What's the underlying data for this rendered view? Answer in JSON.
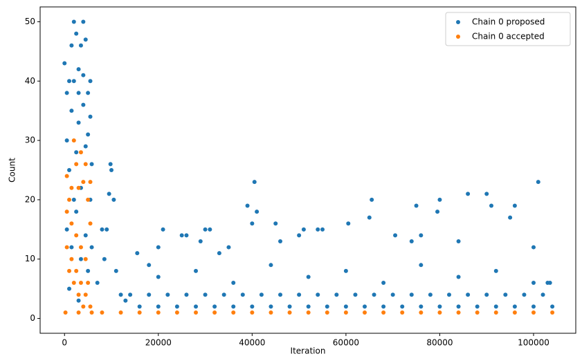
{
  "chart_data": {
    "type": "scatter",
    "xlabel": "Iteration",
    "ylabel": "Count",
    "xlim": [
      -5200,
      109000
    ],
    "ylim": [
      -2.5,
      52.5
    ],
    "xticks": [
      0,
      20000,
      40000,
      60000,
      80000,
      100000
    ],
    "yticks": [
      0,
      10,
      20,
      30,
      40,
      50
    ],
    "legend": "upper right",
    "series": [
      {
        "name": "Chain 0 proposed",
        "color": "#1f77b4",
        "x": [
          0,
          500,
          1000,
          1500,
          2000,
          2500,
          3000,
          3500,
          4000,
          4500,
          5000,
          5500,
          500,
          1000,
          1500,
          2000,
          2500,
          3000,
          3500,
          4000,
          4500,
          5000,
          5500,
          500,
          1500,
          2500,
          3500,
          4500,
          5500,
          1000,
          3000,
          5000,
          2000,
          4000,
          3000,
          5800,
          5800,
          9800,
          10000,
          9500,
          10500,
          9000,
          8000,
          8500,
          7000,
          11000,
          12000,
          13000,
          15500,
          18000,
          20000,
          21000,
          25000,
          26000,
          29000,
          30000,
          31000,
          33000,
          35000,
          39000,
          40500,
          41000,
          40000,
          45000,
          46000,
          50000,
          51000,
          54000,
          55000,
          60500,
          65500,
          65000,
          70500,
          75000,
          74000,
          76000,
          80000,
          79500,
          84000,
          86000,
          90000,
          91000,
          95000,
          96000,
          100000,
          101000,
          103000,
          103500,
          14000,
          18000,
          22000,
          26000,
          30000,
          34000,
          38000,
          42000,
          46000,
          50000,
          54000,
          58000,
          62000,
          66000,
          70000,
          74000,
          78000,
          82000,
          86000,
          90000,
          94000,
          98000,
          102000,
          16000,
          20000,
          24000,
          28000,
          32000,
          36000,
          40000,
          44000,
          48000,
          52000,
          56000,
          60000,
          64000,
          68000,
          72000,
          76000,
          80000,
          84000,
          88000,
          92000,
          96000,
          100000,
          104000,
          20000,
          28000,
          36000,
          44000,
          52000,
          60000,
          68000,
          76000,
          84000,
          92000,
          100000
        ],
        "y": [
          43,
          38,
          40,
          46,
          50,
          48,
          42,
          46,
          50,
          47,
          38,
          40,
          30,
          25,
          35,
          20,
          28,
          33,
          22,
          36,
          29,
          31,
          34,
          15,
          12,
          18,
          10,
          14,
          20,
          5,
          3,
          8,
          40,
          41,
          38,
          26,
          12,
          26,
          25,
          21,
          20,
          15,
          15,
          10,
          6,
          8,
          4,
          3,
          11,
          9,
          12,
          15,
          14,
          14,
          13,
          15,
          15,
          11,
          12,
          19,
          23,
          18,
          16,
          16,
          13,
          14,
          15,
          15,
          15,
          16,
          20,
          17,
          14,
          19,
          13,
          14,
          20,
          18,
          13,
          21,
          21,
          19,
          17,
          19,
          12,
          23,
          6,
          6,
          4,
          4,
          4,
          4,
          4,
          4,
          4,
          4,
          4,
          4,
          4,
          4,
          4,
          4,
          4,
          4,
          4,
          4,
          4,
          4,
          4,
          4,
          4,
          2,
          2,
          2,
          2,
          2,
          2,
          2,
          2,
          2,
          2,
          2,
          2,
          2,
          2,
          2,
          2,
          2,
          2,
          2,
          2,
          2,
          2,
          2,
          7,
          8,
          6,
          9,
          7,
          8,
          6,
          9,
          7,
          8,
          6
        ]
      },
      {
        "name": "Chain 0 accepted",
        "color": "#ff7f0e",
        "x": [
          500,
          1000,
          1500,
          2000,
          2500,
          3000,
          3500,
          4000,
          4500,
          5000,
          5500,
          500,
          1500,
          2500,
          3500,
          4500,
          5500,
          1000,
          2000,
          3000,
          4000,
          5000,
          500,
          1500,
          2500,
          3500,
          4500,
          5500,
          200,
          3000,
          5800,
          8000,
          12000,
          16000,
          20000,
          24000,
          28000,
          32000,
          36000,
          40000,
          44000,
          48000,
          52000,
          56000,
          60000,
          64000,
          68000,
          72000,
          76000,
          80000,
          84000,
          88000,
          92000,
          96000,
          100000,
          104000
        ],
        "y": [
          24,
          20,
          22,
          30,
          26,
          22,
          28,
          23,
          26,
          20,
          23,
          18,
          16,
          14,
          12,
          10,
          16,
          8,
          6,
          4,
          2,
          6,
          12,
          10,
          8,
          6,
          4,
          2,
          1,
          1,
          1,
          1,
          1,
          1,
          1,
          1,
          1,
          1,
          1,
          1,
          1,
          1,
          1,
          1,
          1,
          1,
          1,
          1,
          1,
          1,
          1,
          1,
          1,
          1,
          1,
          1
        ]
      }
    ]
  }
}
